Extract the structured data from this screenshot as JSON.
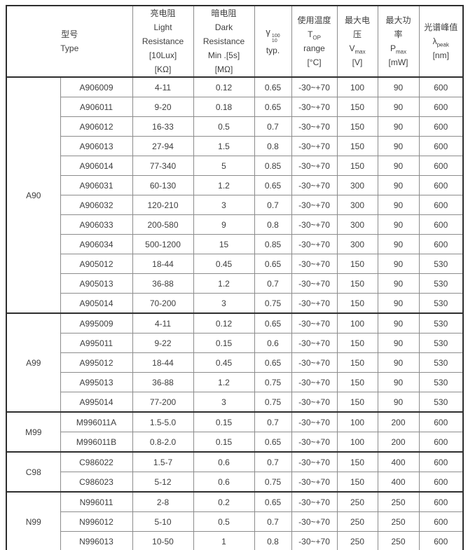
{
  "colors": {
    "background": "#ffffff",
    "text": "#3e3e3e",
    "border_thin": "#8c8c8c",
    "border_thick": "#2e2e2e"
  },
  "table": {
    "header": {
      "type": {
        "cn": "型号",
        "en": "Type"
      },
      "light": {
        "cn": "亮电阻",
        "en1": "Light",
        "en2": "Resistance",
        "cond": "[10Lux]",
        "unit": "[KΩ]"
      },
      "dark": {
        "cn": "暗电阻",
        "en1": "Dark",
        "en2": "Resistance",
        "cond": "Min .[5s]",
        "unit": "[MΩ]"
      },
      "gamma": {
        "symbol": "γ",
        "sup": "100",
        "sub": "10",
        "typ": "typ."
      },
      "temp": {
        "cn": "使用温度",
        "symbol": "T",
        "sub": "OP",
        "range": "range",
        "unit": "[°C]"
      },
      "vmax": {
        "cn1": "最大电",
        "cn2": "压",
        "symbol": "V",
        "sub": "max",
        "unit": "[V]"
      },
      "pmax": {
        "cn1": "最大功",
        "cn2": "率",
        "symbol": "P",
        "sub": "max",
        "unit": "[mW]"
      },
      "peak": {
        "cn": "光谱峰值",
        "symbol": "λ",
        "sub": "peak",
        "unit": "[nm]"
      }
    },
    "groups": [
      {
        "name": "A90",
        "rows": [
          {
            "model": "A906009",
            "light": "4-11",
            "dark": "0.12",
            "gamma": "0.65",
            "temp": "-30~+70",
            "vmax": "100",
            "pmax": "90",
            "peak": "600"
          },
          {
            "model": "A906011",
            "light": "9-20",
            "dark": "0.18",
            "gamma": "0.65",
            "temp": "-30~+70",
            "vmax": "150",
            "pmax": "90",
            "peak": "600"
          },
          {
            "model": "A906012",
            "light": "16-33",
            "dark": "0.5",
            "gamma": "0.7",
            "temp": "-30~+70",
            "vmax": "150",
            "pmax": "90",
            "peak": "600"
          },
          {
            "model": "A906013",
            "light": "27-94",
            "dark": "1.5",
            "gamma": "0.8",
            "temp": "-30~+70",
            "vmax": "150",
            "pmax": "90",
            "peak": "600"
          },
          {
            "model": "A906014",
            "light": "77-340",
            "dark": "5",
            "gamma": "0.85",
            "temp": "-30~+70",
            "vmax": "150",
            "pmax": "90",
            "peak": "600"
          },
          {
            "model": "A906031",
            "light": "60-130",
            "dark": "1.2",
            "gamma": "0.65",
            "temp": "-30~+70",
            "vmax": "300",
            "pmax": "90",
            "peak": "600"
          },
          {
            "model": "A906032",
            "light": "120-210",
            "dark": "3",
            "gamma": "0.7",
            "temp": "-30~+70",
            "vmax": "300",
            "pmax": "90",
            "peak": "600"
          },
          {
            "model": "A906033",
            "light": "200-580",
            "dark": "9",
            "gamma": "0.8",
            "temp": "-30~+70",
            "vmax": "300",
            "pmax": "90",
            "peak": "600"
          },
          {
            "model": "A906034",
            "light": "500-1200",
            "dark": "15",
            "gamma": "0.85",
            "temp": "-30~+70",
            "vmax": "300",
            "pmax": "90",
            "peak": "600"
          },
          {
            "model": "A905012",
            "light": "18-44",
            "dark": "0.45",
            "gamma": "0.65",
            "temp": "-30~+70",
            "vmax": "150",
            "pmax": "90",
            "peak": "530"
          },
          {
            "model": "A905013",
            "light": "36-88",
            "dark": "1.2",
            "gamma": "0.7",
            "temp": "-30~+70",
            "vmax": "150",
            "pmax": "90",
            "peak": "530"
          },
          {
            "model": "A905014",
            "light": "70-200",
            "dark": "3",
            "gamma": "0.75",
            "temp": "-30~+70",
            "vmax": "150",
            "pmax": "90",
            "peak": "530"
          }
        ]
      },
      {
        "name": "A99",
        "rows": [
          {
            "model": "A995009",
            "light": "4-11",
            "dark": "0.12",
            "gamma": "0.65",
            "temp": "-30~+70",
            "vmax": "100",
            "pmax": "90",
            "peak": "530"
          },
          {
            "model": "A995011",
            "light": "9-22",
            "dark": "0.15",
            "gamma": "0.6",
            "temp": "-30~+70",
            "vmax": "150",
            "pmax": "90",
            "peak": "530"
          },
          {
            "model": "A995012",
            "light": "18-44",
            "dark": "0.45",
            "gamma": "0.65",
            "temp": "-30~+70",
            "vmax": "150",
            "pmax": "90",
            "peak": "530"
          },
          {
            "model": "A995013",
            "light": "36-88",
            "dark": "1.2",
            "gamma": "0.75",
            "temp": "-30~+70",
            "vmax": "150",
            "pmax": "90",
            "peak": "530"
          },
          {
            "model": "A995014",
            "light": "77-200",
            "dark": "3",
            "gamma": "0.75",
            "temp": "-30~+70",
            "vmax": "150",
            "pmax": "90",
            "peak": "530"
          }
        ]
      },
      {
        "name": "M99",
        "rows": [
          {
            "model": "M996011A",
            "light": "1.5-5.0",
            "dark": "0.15",
            "gamma": "0.7",
            "temp": "-30~+70",
            "vmax": "100",
            "pmax": "200",
            "peak": "600"
          },
          {
            "model": "M996011B",
            "light": "0.8-2.0",
            "dark": "0.15",
            "gamma": "0.65",
            "temp": "-30~+70",
            "vmax": "100",
            "pmax": "200",
            "peak": "600"
          }
        ]
      },
      {
        "name": "C98",
        "rows": [
          {
            "model": "C986022",
            "light": "1.5-7",
            "dark": "0.6",
            "gamma": "0.7",
            "temp": "-30~+70",
            "vmax": "150",
            "pmax": "400",
            "peak": "600"
          },
          {
            "model": "C986023",
            "light": "5-12",
            "dark": "0.6",
            "gamma": "0.75",
            "temp": "-30~+70",
            "vmax": "150",
            "pmax": "400",
            "peak": "600"
          }
        ]
      },
      {
        "name": "N99",
        "rows": [
          {
            "model": "N996011",
            "light": "2-8",
            "dark": "0.2",
            "gamma": "0.65",
            "temp": "-30~+70",
            "vmax": "250",
            "pmax": "250",
            "peak": "600"
          },
          {
            "model": "N996012",
            "light": "5-10",
            "dark": "0.5",
            "gamma": "0.7",
            "temp": "-30~+70",
            "vmax": "250",
            "pmax": "250",
            "peak": "600"
          },
          {
            "model": "N996013",
            "light": "10-50",
            "dark": "1",
            "gamma": "0.8",
            "temp": "-30~+70",
            "vmax": "250",
            "pmax": "250",
            "peak": "600"
          }
        ]
      }
    ]
  }
}
